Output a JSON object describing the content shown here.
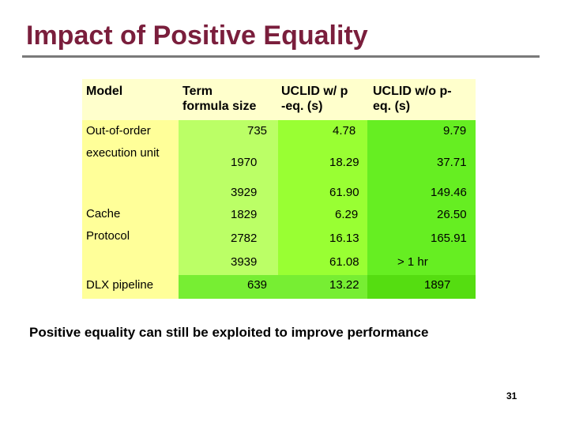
{
  "title": "Impact of Positive Equality",
  "headers": {
    "model": "Model",
    "term_line1": "Term",
    "term_line2": "formula size",
    "with_line1": "UCLID w/ p",
    "with_line2": "-eq. (s)",
    "without_line1": "UCLID w/o p-",
    "without_line2": "eq. (s)"
  },
  "models": {
    "ooo_line1": "Out-of-order",
    "ooo_line2": "execution unit",
    "cache": "Cache",
    "protocol": "Protocol",
    "dlx": "DLX pipeline"
  },
  "rows": [
    {
      "term": "735",
      "with_peq": "4.78",
      "without_peq": "9.79"
    },
    {
      "term": "1970",
      "with_peq": "18.29",
      "without_peq": "37.71"
    },
    {
      "term": "3929",
      "with_peq": "61.90",
      "without_peq": "149.46"
    },
    {
      "term": "1829",
      "with_peq": "6.29",
      "without_peq": "26.50"
    },
    {
      "term": "2782",
      "with_peq": "16.13",
      "without_peq": "165.91"
    },
    {
      "term": "3939",
      "with_peq": "61.08",
      "without_peq": "> 1 hr"
    },
    {
      "term": "639",
      "with_peq": "13.22",
      "without_peq": "1897"
    }
  ],
  "footer": "Positive equality can still be exploited to improve performance",
  "page_number": "31",
  "colors": {
    "title": "#7a1e3c",
    "model_column": "#ffff99",
    "gradient_1": "#bbff66",
    "gradient_2": "#99ff33",
    "gradient_3": "#66ee22"
  }
}
